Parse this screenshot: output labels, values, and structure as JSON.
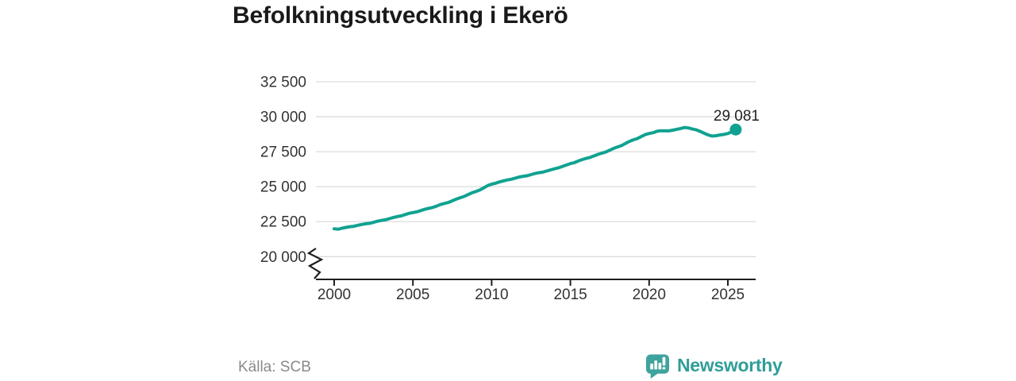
{
  "title": "Befolkningsutveckling i Ekerö",
  "source": "Källa: SCB",
  "branding": {
    "name": "Newsworthy"
  },
  "colors": {
    "line": "#10a291",
    "grid": "#dcdcdc",
    "axis": "#1f1f1f",
    "tick_label": "#333333",
    "title": "#1a1a1a",
    "end_label": "#222222",
    "source": "#8a8a8a",
    "brand_icon": "#3fa39d",
    "brand_text": "#2f9e99"
  },
  "chart_data": {
    "type": "line",
    "title": "Befolkningsutveckling i Ekerö",
    "xlabel": "",
    "ylabel": "",
    "x_ticks": [
      2000,
      2005,
      2010,
      2015,
      2020,
      2025
    ],
    "y_ticks": [
      20000,
      22500,
      25000,
      27500,
      30000,
      32500
    ],
    "y_tick_labels": [
      "20 000",
      "22 500",
      "25 000",
      "27 500",
      "30 000",
      "32 500"
    ],
    "ylim": [
      20000,
      32500
    ],
    "broken_y_axis": true,
    "grid": "horizontal",
    "legend": "none",
    "end_label": "29 081",
    "last_value": 29081,
    "series": [
      {
        "name": "Befolkning",
        "frequency": "quarterly",
        "x_start": 2000,
        "x_step_years": 0.25,
        "values": [
          21990,
          21960,
          22030,
          22090,
          22140,
          22170,
          22240,
          22300,
          22350,
          22380,
          22450,
          22530,
          22590,
          22630,
          22710,
          22790,
          22860,
          22910,
          23000,
          23090,
          23150,
          23200,
          23290,
          23380,
          23450,
          23510,
          23610,
          23720,
          23800,
          23870,
          23990,
          24110,
          24210,
          24300,
          24430,
          24560,
          24660,
          24760,
          24920,
          25080,
          25180,
          25250,
          25340,
          25420,
          25480,
          25530,
          25610,
          25690,
          25740,
          25780,
          25860,
          25940,
          26000,
          26040,
          26120,
          26200,
          26280,
          26350,
          26450,
          26550,
          26650,
          26720,
          26830,
          26940,
          27020,
          27090,
          27200,
          27310,
          27400,
          27480,
          27610,
          27740,
          27840,
          27940,
          28090,
          28240,
          28350,
          28440,
          28580,
          28720,
          28800,
          28860,
          28960,
          29000,
          28990,
          28990,
          29040,
          29100,
          29160,
          29230,
          29200,
          29120,
          29060,
          28950,
          28820,
          28700,
          28620,
          28640,
          28700,
          28740,
          28800,
          28920,
          29081
        ]
      }
    ]
  }
}
